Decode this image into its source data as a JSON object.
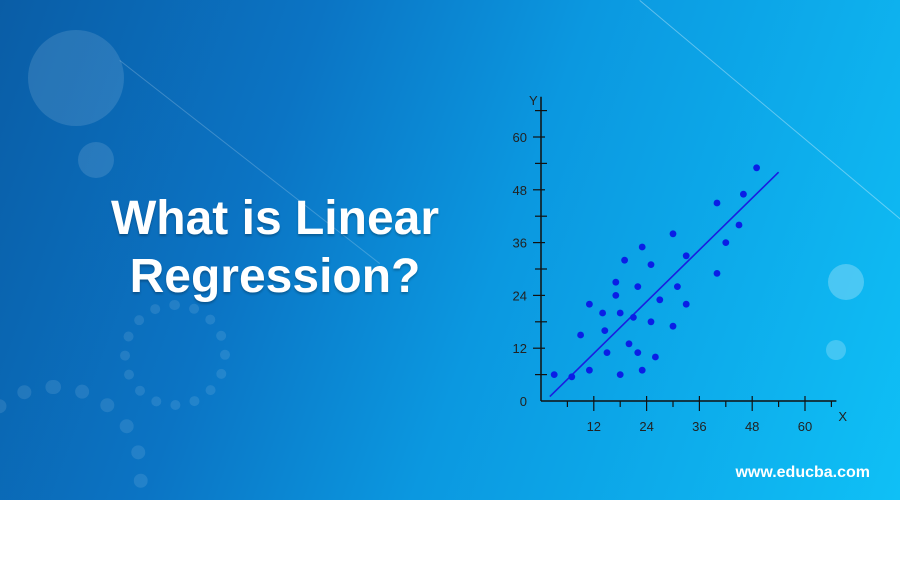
{
  "title": "What is Linear Regression?",
  "footer": "www.educba.com",
  "colors": {
    "axis": "#111111",
    "point": "#0a1ee6",
    "line": "#1a1ee0"
  },
  "chart_data": {
    "type": "scatter",
    "xlabel": "X",
    "ylabel": "Y",
    "x_ticks": [
      12,
      24,
      36,
      48,
      60
    ],
    "y_ticks": [
      0,
      12,
      24,
      36,
      48,
      60
    ],
    "xlim": [
      0,
      66
    ],
    "ylim": [
      0,
      68
    ],
    "points": [
      [
        3,
        6
      ],
      [
        7,
        5.5
      ],
      [
        9,
        15
      ],
      [
        11,
        7
      ],
      [
        11,
        22
      ],
      [
        14,
        20
      ],
      [
        14.5,
        16
      ],
      [
        15,
        11
      ],
      [
        17,
        27
      ],
      [
        17,
        24
      ],
      [
        18,
        6
      ],
      [
        18,
        20
      ],
      [
        19,
        32
      ],
      [
        20,
        13
      ],
      [
        21,
        19
      ],
      [
        22,
        26
      ],
      [
        22,
        11
      ],
      [
        23,
        35
      ],
      [
        23,
        7
      ],
      [
        25,
        31
      ],
      [
        25,
        18
      ],
      [
        26,
        10
      ],
      [
        27,
        23
      ],
      [
        30,
        17
      ],
      [
        30,
        38
      ],
      [
        31,
        26
      ],
      [
        33,
        33
      ],
      [
        33,
        22
      ],
      [
        40,
        45
      ],
      [
        40,
        29
      ],
      [
        42,
        36
      ],
      [
        45,
        40
      ],
      [
        46,
        47
      ],
      [
        49,
        53
      ]
    ],
    "regression_line": {
      "x": [
        2,
        54
      ],
      "y": [
        1,
        52
      ]
    }
  }
}
